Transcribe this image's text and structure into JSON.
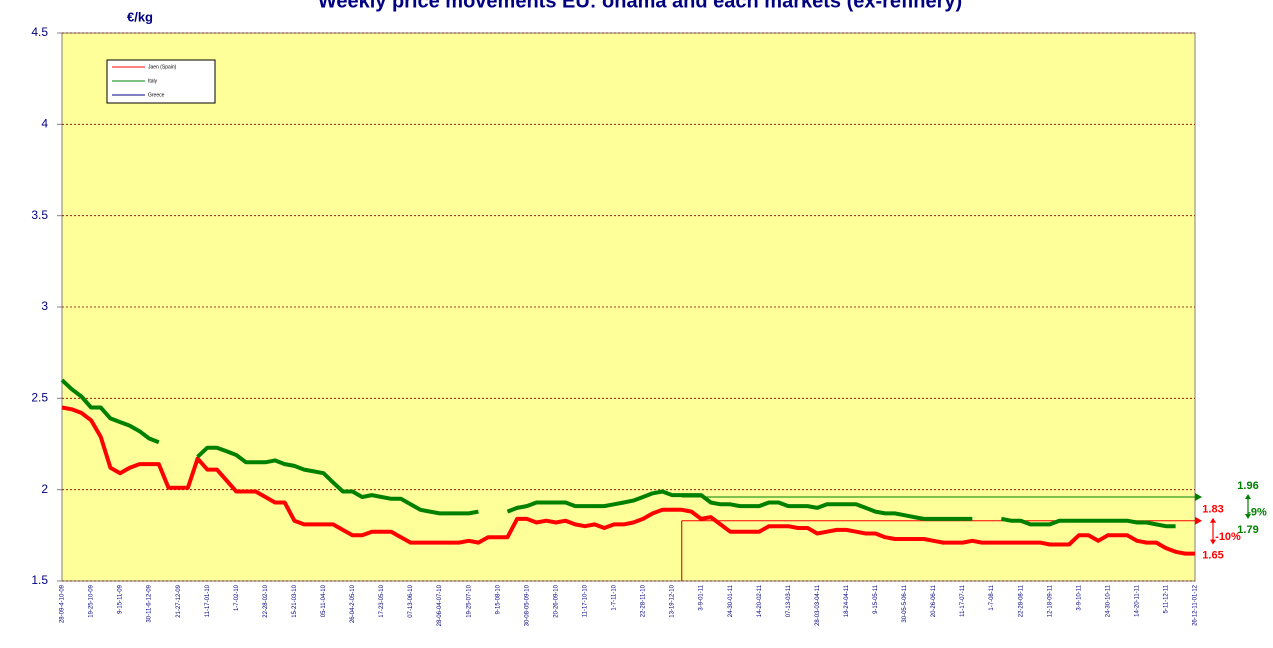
{
  "chart_data": {
    "type": "line",
    "title": "Weekly price movements EU: ohama and each markets (ex-refinery)",
    "y_label": "€/kg",
    "ylim": [
      1.5,
      4.5
    ],
    "yticks": [
      1.5,
      2,
      2.5,
      3,
      3.5,
      4,
      4.5
    ],
    "grid": true,
    "categories": [
      "28-09-4-10-09",
      null,
      null,
      "19-25-10-09",
      null,
      null,
      "9-15-11-09",
      null,
      null,
      "30-11-6-12-09",
      null,
      null,
      "21-27-12-09",
      null,
      null,
      "11-17-01-10",
      null,
      null,
      "1-7-02-10",
      null,
      null,
      "22-28-02-10",
      null,
      null,
      "15-21-03-10",
      null,
      null,
      "05-11-04-10",
      null,
      null,
      "26-04-2-05-10",
      null,
      null,
      "17-23-05-10",
      null,
      null,
      "07-13-06-10",
      null,
      null,
      "28-06-04-07-10",
      null,
      null,
      "19-25-07-10",
      null,
      null,
      "9-15-08-10",
      null,
      null,
      "30-08-05-09-10",
      null,
      null,
      "20-26-09-10",
      null,
      null,
      "11-17-10-10",
      null,
      null,
      "1-7-11-10",
      null,
      null,
      "22-28-11-10",
      null,
      null,
      "13-19-12-10",
      null,
      null,
      "3-9-01-11",
      null,
      null,
      "24-30-01-11",
      null,
      null,
      "14-20-02-11",
      null,
      null,
      "07-13-03-11",
      null,
      null,
      "28-03-03-04-11",
      null,
      null,
      "18-24-04-11",
      null,
      null,
      "9-15-05-11",
      null,
      null,
      "30-05-5-06-11",
      null,
      null,
      "20-26-06-11",
      null,
      null,
      "11-17-07-11",
      null,
      null,
      "1-7-08-11",
      null,
      null,
      "22-28-08-11",
      null,
      null,
      "12-18-09-11",
      null,
      null,
      "3-9-10-11",
      null,
      null,
      "24-30-10-11",
      null,
      null,
      "14-20-11-11",
      null,
      null,
      "5-11-12-11",
      null,
      null,
      "26-12-11-01-12"
    ],
    "series": [
      {
        "name": "Jaen (Spain)",
        "color": "#ff0000",
        "values": [
          2.45,
          2.44,
          2.42,
          2.38,
          2.29,
          2.12,
          2.09,
          2.12,
          2.14,
          2.14,
          2.14,
          2.01,
          2.01,
          2.01,
          2.17,
          2.11,
          2.11,
          2.05,
          1.99,
          1.99,
          1.99,
          1.96,
          1.93,
          1.93,
          1.83,
          1.81,
          1.81,
          1.81,
          1.81,
          1.78,
          1.75,
          1.75,
          1.77,
          1.77,
          1.77,
          1.74,
          1.71,
          1.71,
          1.71,
          1.71,
          1.71,
          1.71,
          1.72,
          1.71,
          1.74,
          1.74,
          1.74,
          1.84,
          1.84,
          1.82,
          1.83,
          1.82,
          1.83,
          1.81,
          1.8,
          1.81,
          1.79,
          1.81,
          1.81,
          1.82,
          1.84,
          1.87,
          1.89,
          1.89,
          1.89,
          1.88,
          1.84,
          1.85,
          1.81,
          1.77,
          1.77,
          1.77,
          1.77,
          1.8,
          1.8,
          1.8,
          1.79,
          1.79,
          1.76,
          1.77,
          1.78,
          1.78,
          1.77,
          1.76,
          1.76,
          1.74,
          1.73,
          1.73,
          1.73,
          1.73,
          1.72,
          1.71,
          1.71,
          1.71,
          1.72,
          1.71,
          1.71,
          1.71,
          1.71,
          1.71,
          1.71,
          1.71,
          1.7,
          1.7,
          1.7,
          1.75,
          1.75,
          1.72,
          1.75,
          1.75,
          1.75,
          1.72,
          1.71,
          1.71,
          1.68,
          1.66,
          1.65,
          1.65
        ]
      },
      {
        "name": "Italy",
        "color": "#008000",
        "values": [
          2.6,
          2.55,
          2.51,
          2.45,
          2.45,
          2.39,
          2.37,
          2.35,
          2.32,
          2.28,
          2.26,
          null,
          null,
          null,
          2.18,
          2.23,
          2.23,
          2.21,
          2.19,
          2.15,
          2.15,
          2.15,
          2.16,
          2.14,
          2.13,
          2.11,
          2.1,
          2.09,
          2.04,
          1.99,
          1.99,
          1.96,
          1.97,
          1.96,
          1.95,
          1.95,
          1.92,
          1.89,
          1.88,
          1.87,
          1.87,
          1.87,
          1.87,
          1.88,
          null,
          null,
          1.88,
          1.9,
          1.91,
          1.93,
          1.93,
          1.93,
          1.93,
          1.91,
          1.91,
          1.91,
          1.91,
          1.92,
          1.93,
          1.94,
          1.96,
          1.98,
          1.99,
          1.97,
          1.97,
          1.97,
          1.97,
          1.93,
          1.92,
          1.92,
          1.91,
          1.91,
          1.91,
          1.93,
          1.93,
          1.91,
          1.91,
          1.91,
          1.9,
          1.92,
          1.92,
          1.92,
          1.92,
          1.9,
          1.88,
          1.87,
          1.87,
          1.86,
          1.85,
          1.84,
          1.84,
          1.84,
          1.84,
          1.84,
          1.84,
          null,
          null,
          1.84,
          1.83,
          1.83,
          1.81,
          1.81,
          1.81,
          1.83,
          1.83,
          1.83,
          1.83,
          1.83,
          1.83,
          1.83,
          1.83,
          1.82,
          1.82,
          1.81,
          1.8,
          1.8,
          null,
          null
        ]
      },
      {
        "name": "Greece",
        "color": "#000080",
        "values": [
          null,
          null,
          null,
          null,
          null,
          null,
          null,
          null,
          null,
          null,
          null,
          null,
          null,
          null,
          null,
          null,
          null,
          null,
          null,
          null,
          null,
          null,
          null,
          null,
          null,
          null,
          null,
          null,
          null,
          null,
          null,
          null,
          null,
          null,
          null,
          null,
          null,
          null,
          null,
          null,
          null,
          null,
          null,
          null,
          null,
          null,
          null,
          null,
          null,
          null,
          null,
          null,
          null,
          null,
          null,
          null,
          null,
          null,
          null,
          null,
          null,
          null,
          null,
          null,
          null,
          null,
          null,
          null,
          null,
          null,
          null,
          null,
          null,
          null,
          null,
          null,
          null,
          null,
          null,
          null,
          null,
          null,
          null,
          null,
          null,
          null,
          null,
          null,
          null,
          null,
          null,
          null,
          null,
          null,
          null,
          null,
          null,
          null,
          null,
          null,
          null,
          null,
          null,
          null,
          null,
          null,
          null,
          null,
          null,
          null,
          null,
          null,
          null,
          null,
          null,
          null,
          null,
          null
        ]
      }
    ],
    "annotations": [
      {
        "color": "#008000",
        "from": 1.96,
        "to": 1.79,
        "label": "-9%"
      },
      {
        "color": "#ff0000",
        "from": 1.83,
        "to": 1.65,
        "label": "-10%"
      }
    ]
  }
}
